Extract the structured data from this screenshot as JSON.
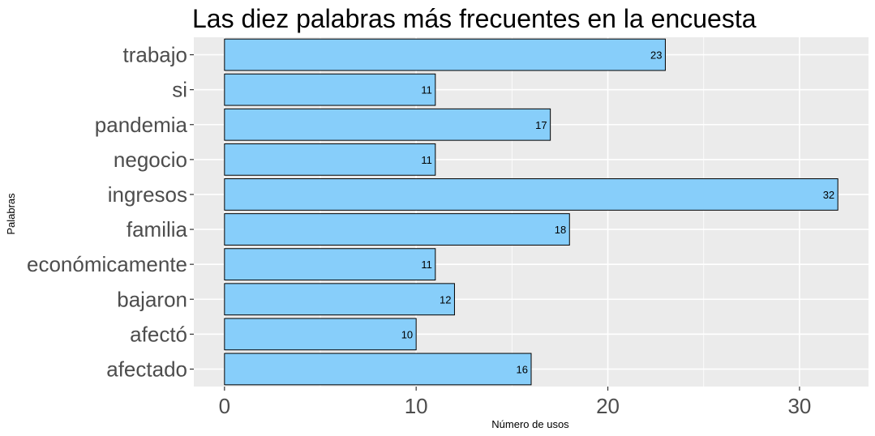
{
  "chart_data": {
    "type": "bar",
    "orientation": "horizontal",
    "title": "Las diez palabras más frecuentes en la encuesta",
    "xlabel": "Número de usos",
    "ylabel": "Palabras",
    "categories": [
      "trabajo",
      "si",
      "pandemia",
      "negocio",
      "ingresos",
      "familia",
      "económicamente",
      "bajaron",
      "afectó",
      "afectado"
    ],
    "values": [
      23,
      11,
      17,
      11,
      32,
      18,
      11,
      12,
      10,
      16
    ],
    "xlim": [
      -1.6,
      33.6
    ],
    "xticks": [
      0,
      10,
      20,
      30
    ],
    "grid": true,
    "legend": "none",
    "colors": {
      "bar_fill": "#87CEFA",
      "bar_stroke": "#000000",
      "panel_bg": "#EBEBEB",
      "grid": "#FFFFFF"
    }
  }
}
